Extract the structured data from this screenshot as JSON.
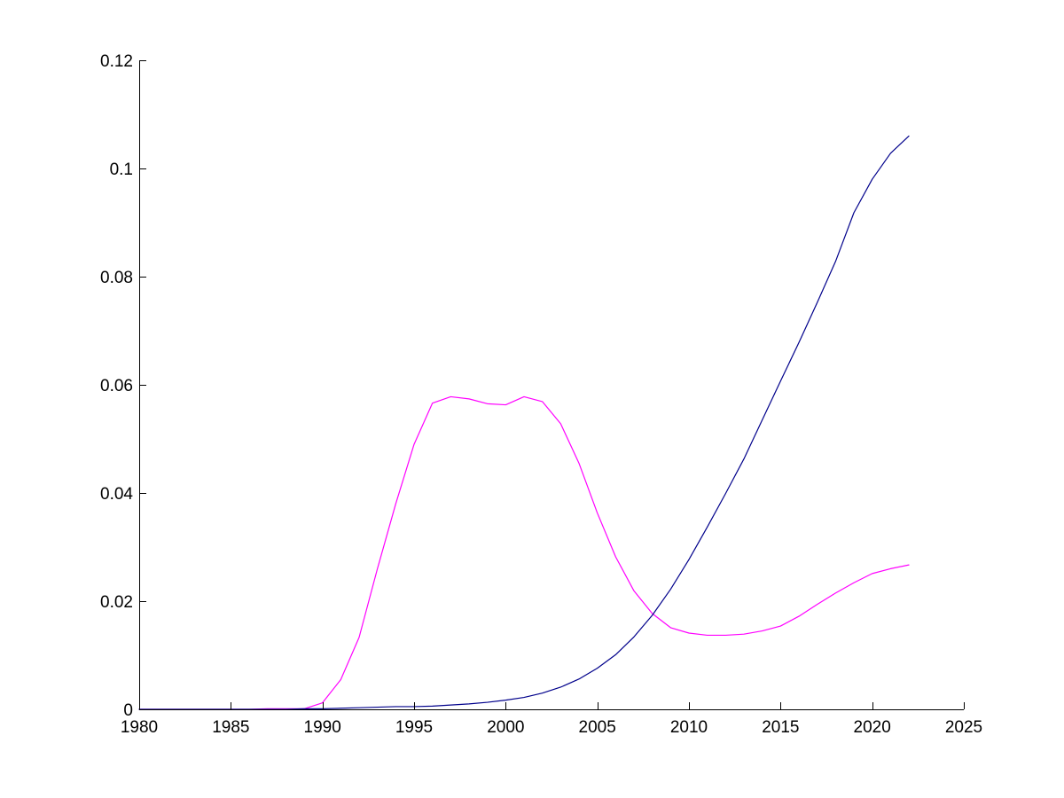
{
  "chart_data": {
    "type": "line",
    "title": "",
    "xlabel": "",
    "ylabel": "",
    "xlim": [
      1980,
      2025
    ],
    "ylim": [
      0,
      0.12
    ],
    "xticks": [
      "1980",
      "1985",
      "1990",
      "1995",
      "2000",
      "2005",
      "2010",
      "2015",
      "2020",
      "2025"
    ],
    "yticks": [
      "0",
      "0.02",
      "0.04",
      "0.06",
      "0.08",
      "0.1",
      "0.12"
    ],
    "grid": false,
    "series": [
      {
        "color": "#ff00ff",
        "x": [
          1980,
          1981,
          1982,
          1983,
          1984,
          1985,
          1986,
          1987,
          1988,
          1989,
          1990,
          1991,
          1992,
          1993,
          1994,
          1995,
          1996,
          1997,
          1998,
          1999,
          2000,
          2001,
          2002,
          2003,
          2004,
          2005,
          2006,
          2007,
          2008,
          2009,
          2010,
          2011,
          2012,
          2013,
          2014,
          2015,
          2016,
          2017,
          2018,
          2019,
          2020,
          2021,
          2022
        ],
        "values": [
          0,
          0,
          0,
          0,
          0,
          0,
          0,
          0.0001,
          0.0001,
          0.0001,
          0.0012,
          0.0055,
          0.0133,
          0.026,
          0.038,
          0.049,
          0.0566,
          0.0578,
          0.0574,
          0.0565,
          0.0563,
          0.0578,
          0.0569,
          0.0528,
          0.0455,
          0.0363,
          0.0282,
          0.0219,
          0.0177,
          0.0151,
          0.0141,
          0.0137,
          0.0137,
          0.0139,
          0.0145,
          0.0154,
          0.0172,
          0.0194,
          0.0215,
          0.0234,
          0.0251,
          0.026,
          0.0267
        ]
      },
      {
        "color": "#00008b",
        "x": [
          1980,
          1981,
          1982,
          1983,
          1984,
          1985,
          1986,
          1987,
          1988,
          1989,
          1990,
          1991,
          1992,
          1993,
          1994,
          1995,
          1996,
          1997,
          1998,
          1999,
          2000,
          2001,
          2002,
          2003,
          2004,
          2005,
          2006,
          2007,
          2008,
          2009,
          2010,
          2011,
          2012,
          2013,
          2014,
          2015,
          2016,
          2017,
          2018,
          2019,
          2020,
          2021,
          2022
        ],
        "values": [
          0,
          0,
          0,
          0,
          0,
          0,
          0,
          0,
          0,
          0.0001,
          0.0001,
          0.0002,
          0.0003,
          0.0004,
          0.0005,
          0.0005,
          0.0006,
          0.0008,
          0.001,
          0.0013,
          0.0017,
          0.0022,
          0.003,
          0.0041,
          0.0056,
          0.0076,
          0.0101,
          0.0134,
          0.0174,
          0.0222,
          0.0277,
          0.0337,
          0.0399,
          0.0463,
          0.0535,
          0.0607,
          0.0678,
          0.0752,
          0.0828,
          0.0918,
          0.098,
          0.1028,
          0.106
        ]
      }
    ]
  }
}
